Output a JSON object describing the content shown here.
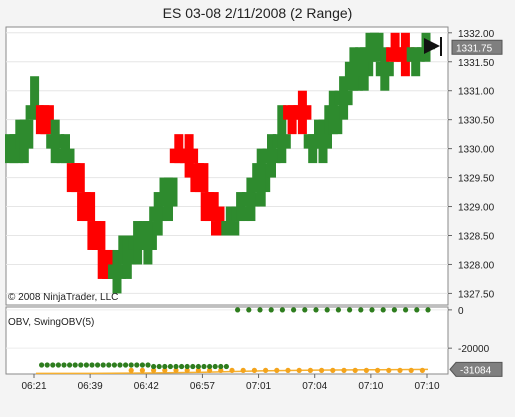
{
  "window": {
    "title": "ES 03-08  2/11/2008 (2 Range)"
  },
  "colors": {
    "up": "#2e8b2e",
    "down": "#ff0000",
    "obv_dot_green": "#2e7d1e",
    "obv_dot_orange": "#f4a41c",
    "obv_line": "#f6b030",
    "price_marker": "#111111",
    "tag_bg": "#7f7f7f",
    "tag_text": "#ffffff"
  },
  "chart_data": [
    {
      "type": "bar",
      "subtype": "range-bar-candlestick",
      "title": "ES 03-08  2/11/2008 (2 Range)",
      "copyright": "© 2008 NinjaTrader, LLC",
      "ylim": [
        1327.3,
        1332.1
      ],
      "y_ticks": [
        "1332.00",
        "1331.75",
        "1331.50",
        "1331.00",
        "1330.50",
        "1330.00",
        "1329.50",
        "1329.00",
        "1328.50",
        "1328.00",
        "1327.50"
      ],
      "last_price": "1331.75",
      "x_ticks": [
        "06:21",
        "06:39",
        "06:42",
        "06:57",
        "07:01",
        "07:04",
        "07:10",
        "07:10"
      ],
      "grid": true,
      "bars": [
        {
          "o": 1329.75,
          "c": 1330.25,
          "l": 1329.75,
          "h": 1330.25,
          "dir": "up"
        },
        {
          "o": 1330.0,
          "c": 1330.5,
          "l": 1329.75,
          "h": 1330.5,
          "dir": "up"
        },
        {
          "o": 1330.5,
          "c": 1330.75,
          "l": 1330.5,
          "h": 1331.25,
          "dir": "up"
        },
        {
          "o": 1330.75,
          "c": 1330.25,
          "l": 1330.25,
          "h": 1330.75,
          "dir": "down"
        },
        {
          "o": 1330.25,
          "c": 1330.0,
          "l": 1329.75,
          "h": 1330.5,
          "dir": "up"
        },
        {
          "o": 1330.0,
          "c": 1329.75,
          "l": 1329.75,
          "h": 1330.25,
          "dir": "up"
        },
        {
          "o": 1329.75,
          "c": 1329.25,
          "l": 1329.25,
          "h": 1329.75,
          "dir": "down"
        },
        {
          "o": 1329.25,
          "c": 1328.75,
          "l": 1328.75,
          "h": 1329.25,
          "dir": "down"
        },
        {
          "o": 1328.75,
          "c": 1328.25,
          "l": 1328.25,
          "h": 1328.75,
          "dir": "down"
        },
        {
          "o": 1328.25,
          "c": 1327.75,
          "l": 1327.75,
          "h": 1328.25,
          "dir": "down"
        },
        {
          "o": 1327.75,
          "c": 1328.0,
          "l": 1327.5,
          "h": 1328.25,
          "dir": "up"
        },
        {
          "o": 1328.0,
          "c": 1328.5,
          "l": 1327.75,
          "h": 1328.5,
          "dir": "up"
        },
        {
          "o": 1328.5,
          "c": 1328.25,
          "l": 1328.0,
          "h": 1328.75,
          "dir": "up"
        },
        {
          "o": 1328.25,
          "c": 1328.75,
          "l": 1328.0,
          "h": 1328.75,
          "dir": "up"
        },
        {
          "o": 1328.75,
          "c": 1329.0,
          "l": 1328.5,
          "h": 1329.25,
          "dir": "up"
        },
        {
          "o": 1329.0,
          "c": 1329.5,
          "l": 1328.75,
          "h": 1329.5,
          "dir": "up"
        },
        {
          "o": 1329.75,
          "c": 1330.0,
          "l": 1329.75,
          "h": 1330.25,
          "dir": "down"
        },
        {
          "o": 1330.0,
          "c": 1329.75,
          "l": 1329.5,
          "h": 1330.25,
          "dir": "down"
        },
        {
          "o": 1329.75,
          "c": 1329.25,
          "l": 1329.25,
          "h": 1329.75,
          "dir": "down"
        },
        {
          "o": 1329.25,
          "c": 1328.75,
          "l": 1328.75,
          "h": 1329.25,
          "dir": "down"
        },
        {
          "o": 1328.75,
          "c": 1328.5,
          "l": 1328.5,
          "h": 1329.0,
          "dir": "down"
        },
        {
          "o": 1328.5,
          "c": 1328.75,
          "l": 1328.5,
          "h": 1329.0,
          "dir": "up"
        },
        {
          "o": 1328.75,
          "c": 1329.0,
          "l": 1328.75,
          "h": 1329.25,
          "dir": "up"
        },
        {
          "o": 1329.0,
          "c": 1329.25,
          "l": 1328.75,
          "h": 1329.5,
          "dir": "up"
        },
        {
          "o": 1329.25,
          "c": 1329.75,
          "l": 1329.0,
          "h": 1330.0,
          "dir": "up"
        },
        {
          "o": 1329.75,
          "c": 1330.0,
          "l": 1329.5,
          "h": 1330.25,
          "dir": "up"
        },
        {
          "o": 1330.0,
          "c": 1330.25,
          "l": 1329.75,
          "h": 1330.75,
          "dir": "up"
        },
        {
          "o": 1330.5,
          "c": 1330.75,
          "l": 1330.25,
          "h": 1330.75,
          "dir": "down"
        },
        {
          "o": 1330.75,
          "c": 1330.5,
          "l": 1330.25,
          "h": 1331.0,
          "dir": "down"
        },
        {
          "o": 1330.25,
          "c": 1330.0,
          "l": 1329.75,
          "h": 1330.25,
          "dir": "up"
        },
        {
          "o": 1330.0,
          "c": 1330.5,
          "l": 1329.75,
          "h": 1330.5,
          "dir": "up"
        },
        {
          "o": 1330.25,
          "c": 1330.75,
          "l": 1330.25,
          "h": 1331.0,
          "dir": "up"
        },
        {
          "o": 1330.75,
          "c": 1331.0,
          "l": 1330.5,
          "h": 1331.25,
          "dir": "up"
        },
        {
          "o": 1331.0,
          "c": 1331.5,
          "l": 1331.0,
          "h": 1331.75,
          "dir": "up"
        },
        {
          "o": 1331.25,
          "c": 1331.75,
          "l": 1331.0,
          "h": 1331.75,
          "dir": "up"
        },
        {
          "o": 1331.5,
          "c": 1332.0,
          "l": 1331.5,
          "h": 1332.0,
          "dir": "up"
        },
        {
          "o": 1331.5,
          "c": 1331.25,
          "l": 1331.0,
          "h": 1331.75,
          "dir": "up"
        },
        {
          "o": 1331.75,
          "c": 1331.5,
          "l": 1331.5,
          "h": 1332.0,
          "dir": "down"
        },
        {
          "o": 1331.75,
          "c": 1331.5,
          "l": 1331.25,
          "h": 1332.0,
          "dir": "down"
        },
        {
          "o": 1331.5,
          "c": 1331.75,
          "l": 1331.25,
          "h": 1331.75,
          "dir": "up"
        },
        {
          "o": 1331.75,
          "c": 1331.75,
          "l": 1331.5,
          "h": 1332.0,
          "dir": "up"
        }
      ]
    },
    {
      "type": "scatter",
      "title": "OBV, SwingOBV(5)",
      "ylim": [
        -33500,
        1500
      ],
      "y_ticks": [
        "0",
        "-20000"
      ],
      "last_value": "-31084",
      "green_dots": [
        {
          "x": 1,
          "y": -28800
        },
        {
          "x": 2,
          "y": -28800
        },
        {
          "x": 3,
          "y": -28800
        },
        {
          "x": 4,
          "y": -28800
        },
        {
          "x": 5,
          "y": -28800
        },
        {
          "x": 6,
          "y": -28800
        },
        {
          "x": 7,
          "y": -28800
        },
        {
          "x": 8,
          "y": -28800
        },
        {
          "x": 9,
          "y": -28800
        },
        {
          "x": 10,
          "y": -28800
        },
        {
          "x": 11,
          "y": -28800
        },
        {
          "x": 12,
          "y": -28800
        },
        {
          "x": 13,
          "y": -28800
        },
        {
          "x": 14,
          "y": -28800
        },
        {
          "x": 15,
          "y": -28800
        },
        {
          "x": 16,
          "y": -28800
        },
        {
          "x": 17,
          "y": -28800
        },
        {
          "x": 18,
          "y": -28800
        },
        {
          "x": 19,
          "y": -28800
        },
        {
          "x": 20,
          "y": -28800
        },
        {
          "x": 21,
          "y": -29600
        },
        {
          "x": 22,
          "y": -29600
        },
        {
          "x": 23,
          "y": -29600
        },
        {
          "x": 24,
          "y": -29600
        },
        {
          "x": 25,
          "y": -29600
        },
        {
          "x": 26,
          "y": -29600
        },
        {
          "x": 27,
          "y": -29600
        },
        {
          "x": 28,
          "y": -29600
        },
        {
          "x": 29,
          "y": -29600
        },
        {
          "x": 30,
          "y": -29600
        },
        {
          "x": 31,
          "y": -29600
        },
        {
          "x": 32,
          "y": -29600
        },
        {
          "x": 33,
          "y": -29600
        },
        {
          "x": 34,
          "y": -29600
        },
        {
          "x": 36,
          "y": 0
        },
        {
          "x": 38,
          "y": 0
        },
        {
          "x": 40,
          "y": 0
        },
        {
          "x": 42,
          "y": 0
        },
        {
          "x": 44,
          "y": 0
        },
        {
          "x": 46,
          "y": 0
        },
        {
          "x": 48,
          "y": 0
        },
        {
          "x": 50,
          "y": 0
        },
        {
          "x": 52,
          "y": 0
        },
        {
          "x": 54,
          "y": 0
        },
        {
          "x": 56,
          "y": 0
        },
        {
          "x": 58,
          "y": 0
        },
        {
          "x": 60,
          "y": 0
        },
        {
          "x": 62,
          "y": 0
        },
        {
          "x": 64,
          "y": 0
        },
        {
          "x": 66,
          "y": 0
        },
        {
          "x": 68,
          "y": 0
        },
        {
          "x": 70,
          "y": 0
        }
      ],
      "orange_dots": [
        {
          "x": 17,
          "y": -31600
        },
        {
          "x": 19,
          "y": -31600
        },
        {
          "x": 21,
          "y": -31600
        },
        {
          "x": 23,
          "y": -31600
        },
        {
          "x": 25,
          "y": -31600
        },
        {
          "x": 27,
          "y": -31600
        },
        {
          "x": 29,
          "y": -31600
        },
        {
          "x": 31,
          "y": -31600
        },
        {
          "x": 33,
          "y": -31600
        },
        {
          "x": 35,
          "y": -31600
        },
        {
          "x": 37,
          "y": -31600
        },
        {
          "x": 39,
          "y": -31600
        },
        {
          "x": 41,
          "y": -31600
        },
        {
          "x": 43,
          "y": -31600
        },
        {
          "x": 45,
          "y": -31600
        },
        {
          "x": 47,
          "y": -31600
        },
        {
          "x": 49,
          "y": -31600
        },
        {
          "x": 51,
          "y": -31600
        },
        {
          "x": 53,
          "y": -31600
        },
        {
          "x": 55,
          "y": -31600
        },
        {
          "x": 57,
          "y": -31600
        },
        {
          "x": 59,
          "y": -31600
        },
        {
          "x": 61,
          "y": -31600
        },
        {
          "x": 63,
          "y": -31600
        },
        {
          "x": 65,
          "y": -31600
        },
        {
          "x": 67,
          "y": -31600
        },
        {
          "x": 69,
          "y": -31600
        }
      ],
      "obv_line": [
        {
          "x": 0,
          "y": -33200
        },
        {
          "x": 10,
          "y": -33200
        },
        {
          "x": 20,
          "y": -33000
        },
        {
          "x": 30,
          "y": -32600
        },
        {
          "x": 40,
          "y": -31900
        },
        {
          "x": 50,
          "y": -31500
        },
        {
          "x": 60,
          "y": -31300
        },
        {
          "x": 70,
          "y": -31084
        }
      ]
    }
  ]
}
